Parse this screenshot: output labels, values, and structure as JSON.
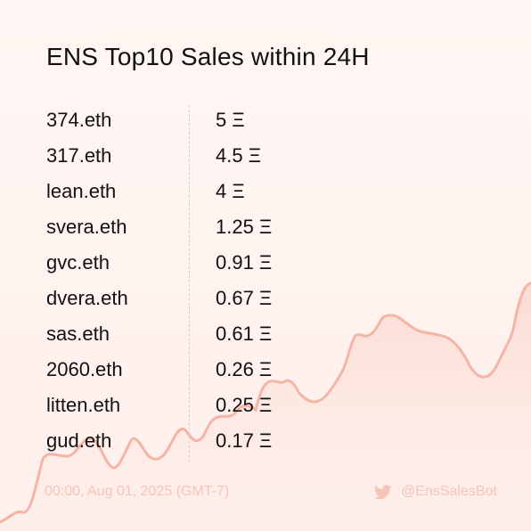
{
  "title": "ENS Top10 Sales within 24H",
  "sales": [
    {
      "name": "374.eth",
      "price": "5 Ξ"
    },
    {
      "name": "317.eth",
      "price": "4.5 Ξ"
    },
    {
      "name": "lean.eth",
      "price": "4 Ξ"
    },
    {
      "name": "svera.eth",
      "price": "1.25 Ξ"
    },
    {
      "name": "gvc.eth",
      "price": "0.91 Ξ"
    },
    {
      "name": "dvera.eth",
      "price": "0.67 Ξ"
    },
    {
      "name": "sas.eth",
      "price": "0.61 Ξ"
    },
    {
      "name": "2060.eth",
      "price": "0.26 Ξ"
    },
    {
      "name": "litten.eth",
      "price": "0.25 Ξ"
    },
    {
      "name": "gud.eth",
      "price": "0.17 Ξ"
    }
  ],
  "footer": {
    "timestamp": "00:00, Aug 01, 2025 (GMT-7)",
    "handle": "@EnsSalesBot",
    "handle_icon": "twitter-bird-icon"
  },
  "colors": {
    "background": "#fff3f0",
    "accent_line": "#f6b4a4",
    "muted_text": "#f7c4b8",
    "text": "#111111"
  }
}
